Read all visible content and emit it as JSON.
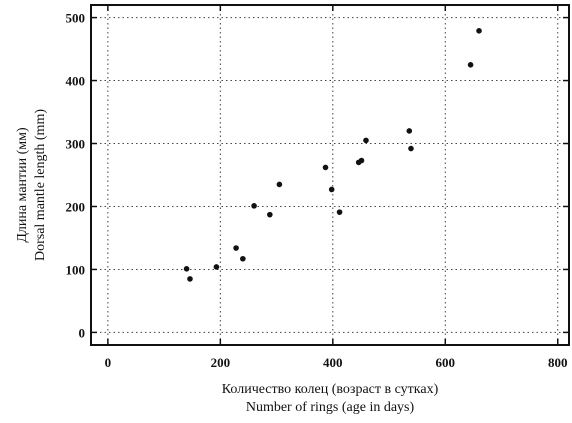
{
  "chart_data": {
    "type": "scatter",
    "xlabel_ru": "Количество колец (возраст в сутках)",
    "xlabel_en": "Number of rings (age in days)",
    "ylabel_ru": "Длина мантии (мм)",
    "ylabel_en": "Dorsal mantle length (mm)",
    "xlim": [
      -30,
      820
    ],
    "ylim": [
      -20,
      520
    ],
    "xticks": [
      0,
      200,
      400,
      600,
      800
    ],
    "yticks": [
      0,
      100,
      200,
      300,
      400,
      500
    ],
    "grid": true,
    "series": [
      {
        "points": [
          [
            140,
            101
          ],
          [
            146,
            85
          ],
          [
            193,
            104
          ],
          [
            228,
            134
          ],
          [
            240,
            117
          ],
          [
            260,
            201
          ],
          [
            288,
            187
          ],
          [
            305,
            235
          ],
          [
            387,
            262
          ],
          [
            398,
            227
          ],
          [
            412,
            191
          ],
          [
            446,
            270
          ],
          [
            451,
            273
          ],
          [
            459,
            305
          ],
          [
            536,
            320
          ],
          [
            539,
            292
          ],
          [
            645,
            425
          ],
          [
            660,
            479
          ]
        ]
      }
    ]
  }
}
